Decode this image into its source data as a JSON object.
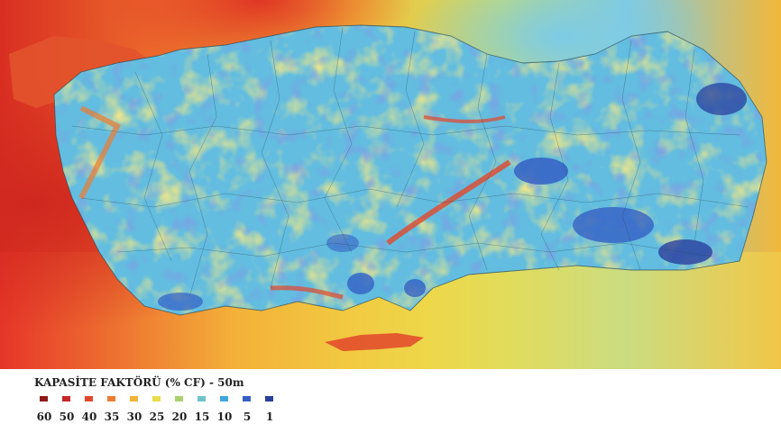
{
  "legend": {
    "title": "KAPASİTE FAKTÖRÜ (% CF) - 50m",
    "items": [
      {
        "label": "60",
        "color": "#8e1b1b"
      },
      {
        "label": "50",
        "color": "#c62727"
      },
      {
        "label": "40",
        "color": "#e2472b"
      },
      {
        "label": "35",
        "color": "#ec7c30"
      },
      {
        "label": "30",
        "color": "#f3b336"
      },
      {
        "label": "25",
        "color": "#e8dc48"
      },
      {
        "label": "20",
        "color": "#a9d170"
      },
      {
        "label": "15",
        "color": "#6ec3c8"
      },
      {
        "label": "10",
        "color": "#3fa6dc"
      },
      {
        "label": "5",
        "color": "#3560c4"
      },
      {
        "label": "1",
        "color": "#2a3f9e"
      }
    ]
  },
  "map": {
    "palette": {
      "sea_far_west": "#e13a2a",
      "sea_north": "#f0c43a",
      "sea_south": "#f2a03a",
      "land_base": "#5fbde0",
      "ridge": "#f2d23c",
      "hot": "#e04a2a",
      "low": "#2e5fbf"
    }
  }
}
